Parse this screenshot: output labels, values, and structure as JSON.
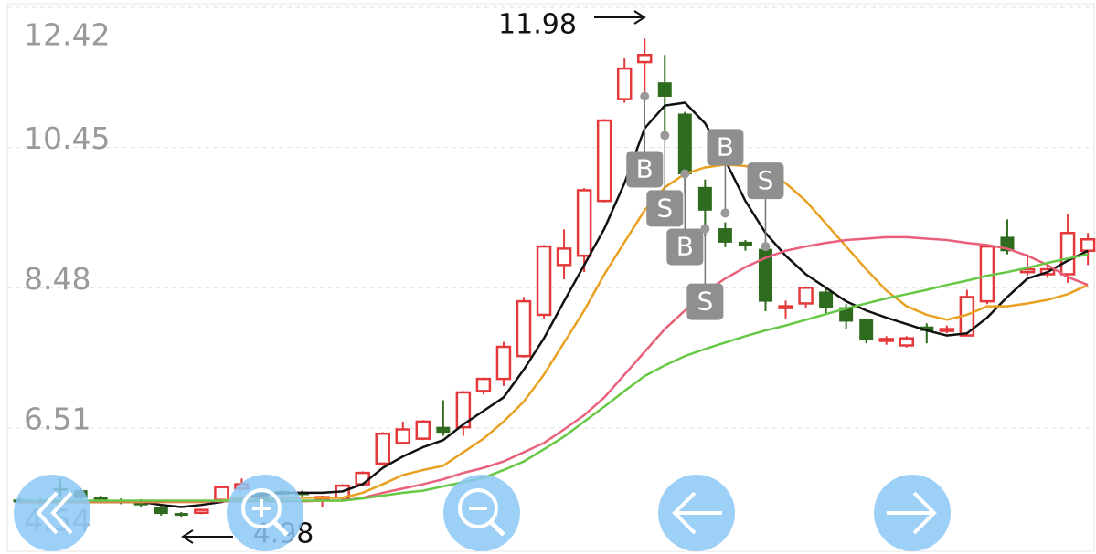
{
  "chart_data": {
    "type": "candlestick",
    "ylim": [
      4.54,
      12.42
    ],
    "yticks": [
      12.42,
      10.45,
      8.48,
      6.51,
      4.54
    ],
    "grid": true,
    "up_color": "#e5383b",
    "down_color": "#2f6b1e",
    "ohlc": [
      [
        5.5,
        5.53,
        5.45,
        5.47
      ],
      [
        5.49,
        5.52,
        5.44,
        5.46
      ],
      [
        5.66,
        5.8,
        5.55,
        5.64
      ],
      [
        5.63,
        5.66,
        5.5,
        5.53
      ],
      [
        5.53,
        5.56,
        5.45,
        5.47
      ],
      [
        5.49,
        5.52,
        5.44,
        5.46
      ],
      [
        5.49,
        5.51,
        5.4,
        5.43
      ],
      [
        5.4,
        5.42,
        5.28,
        5.31
      ],
      [
        5.31,
        5.33,
        5.25,
        5.29
      ],
      [
        5.32,
        5.37,
        5.3,
        5.36
      ],
      [
        5.5,
        5.7,
        5.48,
        5.68
      ],
      [
        5.66,
        5.8,
        5.64,
        5.72
      ],
      [
        5.6,
        5.64,
        5.45,
        5.5
      ],
      [
        5.62,
        5.65,
        5.55,
        5.58
      ],
      [
        5.6,
        5.63,
        5.55,
        5.58
      ],
      [
        5.5,
        5.56,
        5.4,
        5.54
      ],
      [
        5.53,
        5.72,
        5.5,
        5.7
      ],
      [
        5.72,
        5.9,
        5.7,
        5.88
      ],
      [
        6.01,
        6.45,
        5.98,
        6.43
      ],
      [
        6.3,
        6.6,
        6.28,
        6.49
      ],
      [
        6.36,
        6.62,
        6.34,
        6.6
      ],
      [
        6.52,
        6.9,
        6.4,
        6.45
      ],
      [
        6.52,
        7.03,
        6.4,
        7.01
      ],
      [
        7.03,
        7.22,
        6.98,
        7.2
      ],
      [
        7.2,
        7.72,
        7.1,
        7.65
      ],
      [
        7.52,
        8.35,
        7.5,
        8.29
      ],
      [
        8.1,
        9.08,
        8.05,
        9.06
      ],
      [
        8.8,
        9.3,
        8.6,
        9.03
      ],
      [
        8.93,
        9.88,
        8.7,
        9.85
      ],
      [
        9.7,
        10.85,
        9.68,
        10.83
      ],
      [
        11.13,
        11.7,
        11.08,
        11.56
      ],
      [
        11.65,
        11.98,
        11.2,
        11.75
      ],
      [
        11.36,
        11.75,
        10.6,
        11.17
      ],
      [
        10.92,
        10.95,
        9.8,
        10.08
      ],
      [
        9.89,
        10.0,
        9.2,
        9.57
      ],
      [
        9.31,
        9.4,
        9.05,
        9.12
      ],
      [
        9.12,
        9.15,
        9.0,
        9.08
      ],
      [
        9.02,
        9.1,
        8.15,
        8.29
      ],
      [
        8.2,
        8.3,
        8.05,
        8.22
      ],
      [
        8.26,
        8.5,
        8.2,
        8.48
      ],
      [
        8.42,
        8.48,
        8.1,
        8.2
      ],
      [
        8.2,
        8.25,
        7.9,
        8.01
      ],
      [
        8.03,
        8.05,
        7.7,
        7.75
      ],
      [
        7.74,
        7.8,
        7.68,
        7.76
      ],
      [
        7.67,
        7.8,
        7.64,
        7.77
      ],
      [
        7.93,
        7.98,
        7.7,
        7.88
      ],
      [
        7.89,
        7.95,
        7.84,
        7.9
      ],
      [
        7.81,
        8.45,
        7.8,
        8.35
      ],
      [
        8.29,
        9.08,
        8.25,
        9.06
      ],
      [
        9.19,
        9.44,
        8.95,
        9.0
      ],
      [
        8.7,
        8.95,
        8.65,
        8.74
      ],
      [
        8.67,
        8.8,
        8.62,
        8.74
      ],
      [
        8.67,
        9.51,
        8.55,
        9.25
      ],
      [
        9.0,
        9.25,
        8.8,
        9.16
      ]
    ],
    "lines": [
      {
        "color": "#111111",
        "values": [
          5.47,
          5.47,
          5.47,
          5.47,
          5.47,
          5.47,
          5.47,
          5.43,
          5.4,
          5.43,
          5.47,
          5.53,
          5.57,
          5.6,
          5.6,
          5.6,
          5.62,
          5.72,
          5.95,
          6.11,
          6.24,
          6.34,
          6.56,
          6.75,
          6.94,
          7.33,
          7.77,
          8.29,
          8.8,
          9.31,
          9.95,
          10.72,
          11.04,
          11.08,
          10.79,
          10.27,
          9.7,
          9.25,
          8.93,
          8.67,
          8.48,
          8.29,
          8.16,
          8.06,
          7.97,
          7.88,
          7.81,
          7.84,
          8.06,
          8.35,
          8.61,
          8.7,
          8.86,
          9.0
        ]
      },
      {
        "color": "#e8a020",
        "values": [
          5.47,
          5.47,
          5.47,
          5.47,
          5.47,
          5.47,
          5.47,
          5.47,
          5.47,
          5.47,
          5.49,
          5.53,
          5.53,
          5.53,
          5.53,
          5.53,
          5.53,
          5.6,
          5.72,
          5.85,
          5.92,
          5.98,
          6.17,
          6.36,
          6.6,
          6.88,
          7.26,
          7.71,
          8.16,
          8.67,
          9.12,
          9.57,
          9.89,
          10.08,
          10.17,
          10.21,
          10.19,
          10.11,
          9.95,
          9.7,
          9.38,
          9.06,
          8.74,
          8.44,
          8.22,
          8.1,
          8.03,
          8.1,
          8.22,
          8.22,
          8.26,
          8.31,
          8.39,
          8.52
        ]
      },
      {
        "color": "#e8607a",
        "values": [
          5.48,
          5.48,
          5.48,
          5.48,
          5.48,
          5.48,
          5.48,
          5.48,
          5.48,
          5.48,
          5.48,
          5.48,
          5.48,
          5.48,
          5.48,
          5.49,
          5.49,
          5.53,
          5.6,
          5.66,
          5.72,
          5.79,
          5.88,
          5.95,
          6.04,
          6.17,
          6.3,
          6.49,
          6.69,
          6.94,
          7.26,
          7.58,
          7.9,
          8.16,
          8.42,
          8.61,
          8.77,
          8.9,
          9.0,
          9.06,
          9.11,
          9.15,
          9.17,
          9.19,
          9.19,
          9.17,
          9.15,
          9.11,
          9.08,
          9.03,
          8.93,
          8.8,
          8.63,
          8.52
        ]
      },
      {
        "color": "#66c845",
        "values": [
          5.49,
          5.49,
          5.49,
          5.49,
          5.49,
          5.49,
          5.49,
          5.49,
          5.49,
          5.49,
          5.49,
          5.49,
          5.49,
          5.49,
          5.49,
          5.49,
          5.49,
          5.52,
          5.56,
          5.6,
          5.63,
          5.69,
          5.75,
          5.81,
          5.92,
          6.04,
          6.21,
          6.39,
          6.6,
          6.81,
          7.03,
          7.24,
          7.39,
          7.52,
          7.62,
          7.71,
          7.8,
          7.88,
          7.95,
          8.03,
          8.11,
          8.19,
          8.26,
          8.33,
          8.39,
          8.45,
          8.52,
          8.58,
          8.65,
          8.7,
          8.76,
          8.83,
          8.89,
          8.95
        ]
      }
    ],
    "signals": [
      null,
      null,
      null,
      null,
      null,
      null,
      null,
      null,
      null,
      null,
      null,
      null,
      null,
      null,
      null,
      null,
      null,
      null,
      null,
      null,
      null,
      null,
      null,
      null,
      null,
      null,
      null,
      null,
      null,
      null,
      null,
      "B",
      "S",
      "B",
      "S",
      "B",
      null,
      "S",
      null,
      null,
      null,
      null,
      null,
      null,
      null,
      null,
      null,
      null,
      null,
      null,
      null,
      null,
      null,
      null
    ],
    "signal_prices": [
      null,
      null,
      null,
      null,
      null,
      null,
      null,
      null,
      null,
      null,
      null,
      null,
      null,
      null,
      null,
      null,
      null,
      null,
      null,
      null,
      null,
      null,
      null,
      null,
      null,
      null,
      null,
      null,
      null,
      null,
      null,
      11.17,
      10.62,
      10.08,
      9.31,
      9.53,
      null,
      9.06,
      null,
      null,
      null,
      null,
      null,
      null,
      null,
      null,
      null,
      null,
      null,
      null,
      null,
      null,
      null,
      null
    ],
    "annotations": [
      11.98,
      4.98
    ]
  }
}
